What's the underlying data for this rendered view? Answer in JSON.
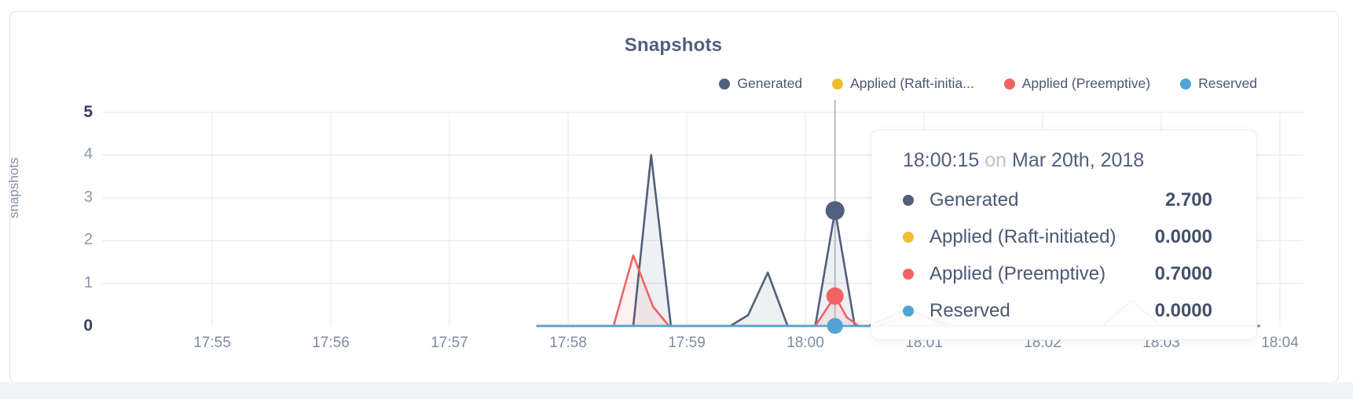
{
  "chart_data": {
    "type": "area",
    "title": "Snapshots",
    "ylabel": "snapshots",
    "ylim": [
      0,
      5
    ],
    "yticks": [
      0,
      1,
      2,
      3,
      4,
      5
    ],
    "ytick_bold": [
      0,
      5
    ],
    "xticks": [
      "17:55",
      "17:56",
      "17:57",
      "17:58",
      "17:59",
      "18:00",
      "18:01",
      "18:02",
      "18:03",
      "18:04"
    ],
    "x_tick_interval_s": 60,
    "grid": true,
    "legend_position": "top-right",
    "series": [
      {
        "name": "Generated",
        "color": "#525f7d",
        "fill": "rgba(93,107,140,0.10)",
        "points": [
          [
            164,
            0
          ],
          [
            206,
            0
          ],
          [
            213,
            0
          ],
          [
            222,
            4.0
          ],
          [
            232,
            0
          ],
          [
            262,
            0
          ],
          [
            271,
            0.25
          ],
          [
            281,
            1.25
          ],
          [
            291,
            0
          ],
          [
            305,
            0
          ],
          [
            315,
            2.7
          ],
          [
            325,
            0
          ],
          [
            332,
            0
          ],
          [
            352,
            0.4
          ],
          [
            372,
            0
          ],
          [
            530,
            0
          ]
        ]
      },
      {
        "name": "Applied (Raft-initiated)",
        "color": "#eebd31",
        "fill": "none",
        "points": [
          [
            164,
            0
          ],
          [
            530,
            0
          ]
        ]
      },
      {
        "name": "Applied (Preemptive)",
        "color": "#f06365",
        "fill": "rgba(240,99,101,0.09)",
        "points": [
          [
            164,
            0
          ],
          [
            203,
            0
          ],
          [
            213,
            1.65
          ],
          [
            223,
            0.45
          ],
          [
            231,
            0
          ],
          [
            305,
            0
          ],
          [
            315,
            0.7
          ],
          [
            321,
            0.2
          ],
          [
            327,
            0
          ],
          [
            336,
            0
          ],
          [
            356,
            0.3
          ],
          [
            376,
            0
          ],
          [
            450,
            0
          ],
          [
            465,
            0.6
          ],
          [
            480,
            0
          ],
          [
            530,
            0
          ]
        ]
      },
      {
        "name": "Reserved",
        "color": "#51a3d7",
        "fill": "none",
        "points": [
          [
            164,
            0
          ],
          [
            530,
            0
          ]
        ]
      }
    ],
    "hover": {
      "time_s": 315,
      "values": [
        2.7,
        0,
        0.7,
        0
      ],
      "marker_radii": [
        12,
        10,
        11,
        10
      ]
    }
  },
  "legend": {
    "items": [
      {
        "label": "Generated",
        "color": "#525f7d"
      },
      {
        "label": "Applied (Raft-initia...",
        "color": "#eebd31"
      },
      {
        "label": "Applied (Preemptive)",
        "color": "#f06365"
      },
      {
        "label": "Reserved",
        "color": "#51a3d7"
      }
    ]
  },
  "tooltip": {
    "time": "18:00:15",
    "conjunction": "on",
    "date": "Mar 20th, 2018",
    "rows": [
      {
        "label": "Generated",
        "value": "2.700",
        "color": "#525f7d"
      },
      {
        "label": "Applied (Raft-initiated)",
        "value": "0.0000",
        "color": "#eebd31"
      },
      {
        "label": "Applied (Preemptive)",
        "value": "0.7000",
        "color": "#f06365"
      },
      {
        "label": "Reserved",
        "value": "0.0000",
        "color": "#51a3d7"
      }
    ]
  }
}
